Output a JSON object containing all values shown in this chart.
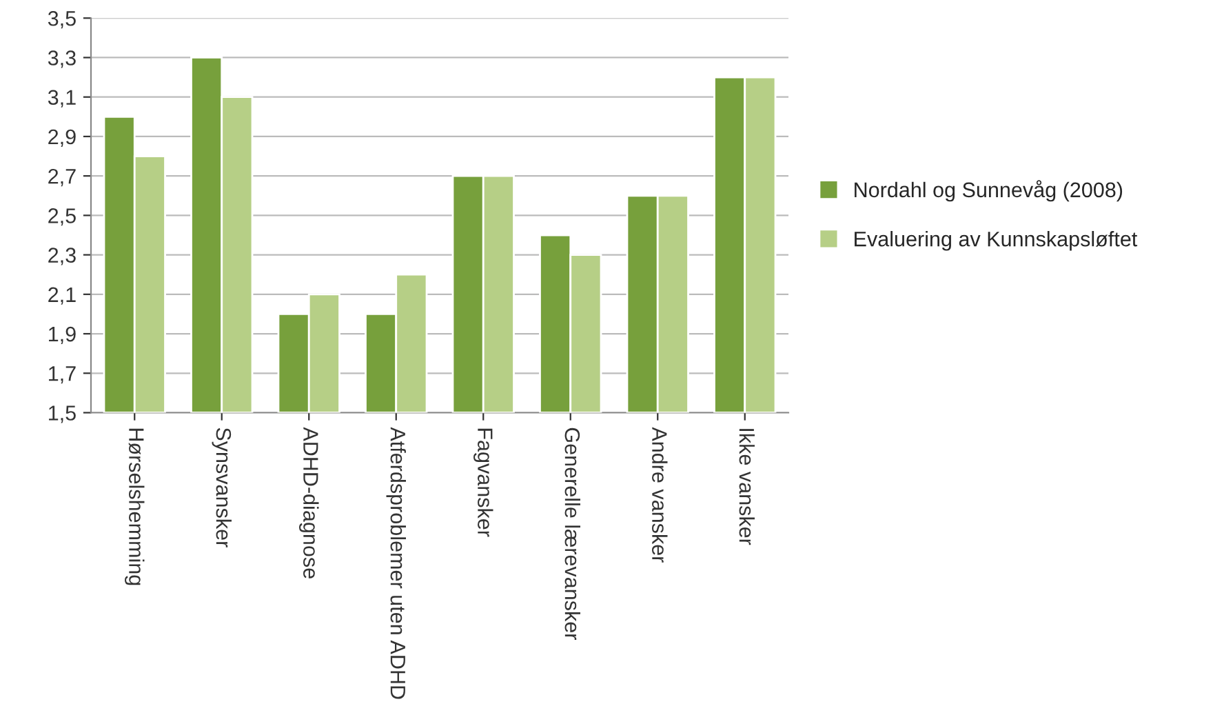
{
  "chart_data": {
    "type": "bar",
    "categories": [
      "Hørselshemming",
      "Synsvansker",
      "ADHD-diagnose",
      "Atferdsproblemer uten ADHD",
      "Fagvansker",
      "Generelle lærevansker",
      "Andre vansker",
      "Ikke vansker"
    ],
    "series": [
      {
        "name": "Nordahl og Sunnevåg (2008)",
        "color": "#77a03c",
        "values": [
          3.0,
          3.3,
          2.0,
          2.0,
          2.7,
          2.4,
          2.6,
          3.2
        ]
      },
      {
        "name": "Evaluering av Kunnskapsløftet",
        "color": "#b6cf86",
        "values": [
          2.8,
          3.1,
          2.1,
          2.2,
          2.7,
          2.3,
          2.6,
          3.2
        ]
      }
    ],
    "ylim": [
      1.5,
      3.5
    ],
    "yticks": [
      {
        "value": 1.5,
        "label": "1,5"
      },
      {
        "value": 1.7,
        "label": "1,7"
      },
      {
        "value": 1.9,
        "label": "1,9"
      },
      {
        "value": 2.1,
        "label": "2,1"
      },
      {
        "value": 2.3,
        "label": "2,3"
      },
      {
        "value": 2.5,
        "label": "2,5"
      },
      {
        "value": 2.7,
        "label": "2,7"
      },
      {
        "value": 2.9,
        "label": "2,9"
      },
      {
        "value": 3.1,
        "label": "3,1"
      },
      {
        "value": 3.3,
        "label": "3,3"
      },
      {
        "value": 3.5,
        "label": "3,5"
      }
    ],
    "grid": "y",
    "legend": "right"
  }
}
